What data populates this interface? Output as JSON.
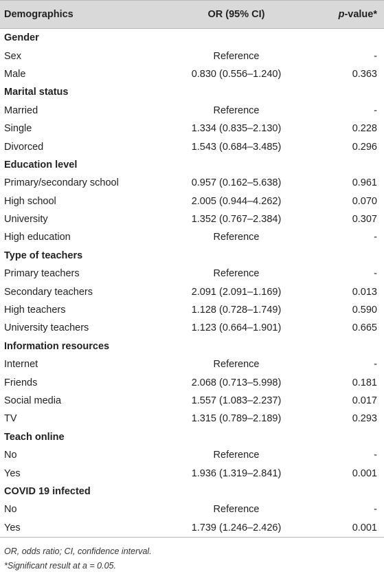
{
  "header": {
    "col1": "Demographics",
    "col2": "OR (95% CI)",
    "col3_italic": "p",
    "col3_rest": "-value*"
  },
  "rows": [
    {
      "type": "section",
      "label": "Gender",
      "or": "",
      "p": ""
    },
    {
      "type": "row",
      "label": "Sex",
      "or": "Reference",
      "p": "-"
    },
    {
      "type": "row",
      "label": "Male",
      "or": "0.830 (0.556–1.240)",
      "p": "0.363"
    },
    {
      "type": "section",
      "label": "Marital status",
      "or": "",
      "p": ""
    },
    {
      "type": "row",
      "label": "Married",
      "or": "Reference",
      "p": "-"
    },
    {
      "type": "row",
      "label": "Single",
      "or": "1.334 (0.835–2.130)",
      "p": "0.228"
    },
    {
      "type": "row",
      "label": "Divorced",
      "or": "1.543 (0.684–3.485)",
      "p": "0.296"
    },
    {
      "type": "section",
      "label": "Education level",
      "or": "",
      "p": ""
    },
    {
      "type": "row",
      "label": "Primary/secondary school",
      "or": "0.957 (0.162–5.638)",
      "p": "0.961"
    },
    {
      "type": "row",
      "label": "High school",
      "or": "2.005 (0.944–4.262)",
      "p": "0.070"
    },
    {
      "type": "row",
      "label": "University",
      "or": "1.352 (0.767–2.384)",
      "p": "0.307"
    },
    {
      "type": "row",
      "label": "High education",
      "or": "Reference",
      "p": "-"
    },
    {
      "type": "section",
      "label": "Type of teachers",
      "or": "",
      "p": ""
    },
    {
      "type": "row",
      "label": "Primary teachers",
      "or": "Reference",
      "p": "-"
    },
    {
      "type": "row",
      "label": "Secondary teachers",
      "or": "2.091 (2.091–1.169)",
      "p": "0.013"
    },
    {
      "type": "row",
      "label": "High teachers",
      "or": "1.128 (0.728–1.749)",
      "p": "0.590"
    },
    {
      "type": "row",
      "label": "University teachers",
      "or": "1.123 (0.664–1.901)",
      "p": "0.665"
    },
    {
      "type": "section",
      "label": "Information resources",
      "or": "",
      "p": ""
    },
    {
      "type": "row",
      "label": "Internet",
      "or": "Reference",
      "p": "-"
    },
    {
      "type": "row",
      "label": "Friends",
      "or": "2.068 (0.713–5.998)",
      "p": "0.181"
    },
    {
      "type": "row",
      "label": "Social media",
      "or": "1.557 (1.083–2.237)",
      "p": "0.017"
    },
    {
      "type": "row",
      "label": "TV",
      "or": "1.315 (0.789–2.189)",
      "p": "0.293"
    },
    {
      "type": "section",
      "label": "Teach online",
      "or": "",
      "p": ""
    },
    {
      "type": "row",
      "label": "No",
      "or": "Reference",
      "p": "-"
    },
    {
      "type": "row",
      "label": "Yes",
      "or": "1.936 (1.319–2.841)",
      "p": "0.001"
    },
    {
      "type": "section",
      "label": "COVID 19 infected",
      "or": "",
      "p": ""
    },
    {
      "type": "row",
      "label": "No",
      "or": "Reference",
      "p": "-"
    },
    {
      "type": "row",
      "label": "Yes",
      "or": "1.739 (1.246–2.426)",
      "p": "0.001"
    }
  ],
  "footnotes": [
    "OR, odds ratio; CI, confidence interval.",
    "*Significant result at a = 0.05."
  ],
  "colors": {
    "header_bg": "#d9d9d9",
    "rule": "#b8b8b8",
    "text": "#222222"
  }
}
